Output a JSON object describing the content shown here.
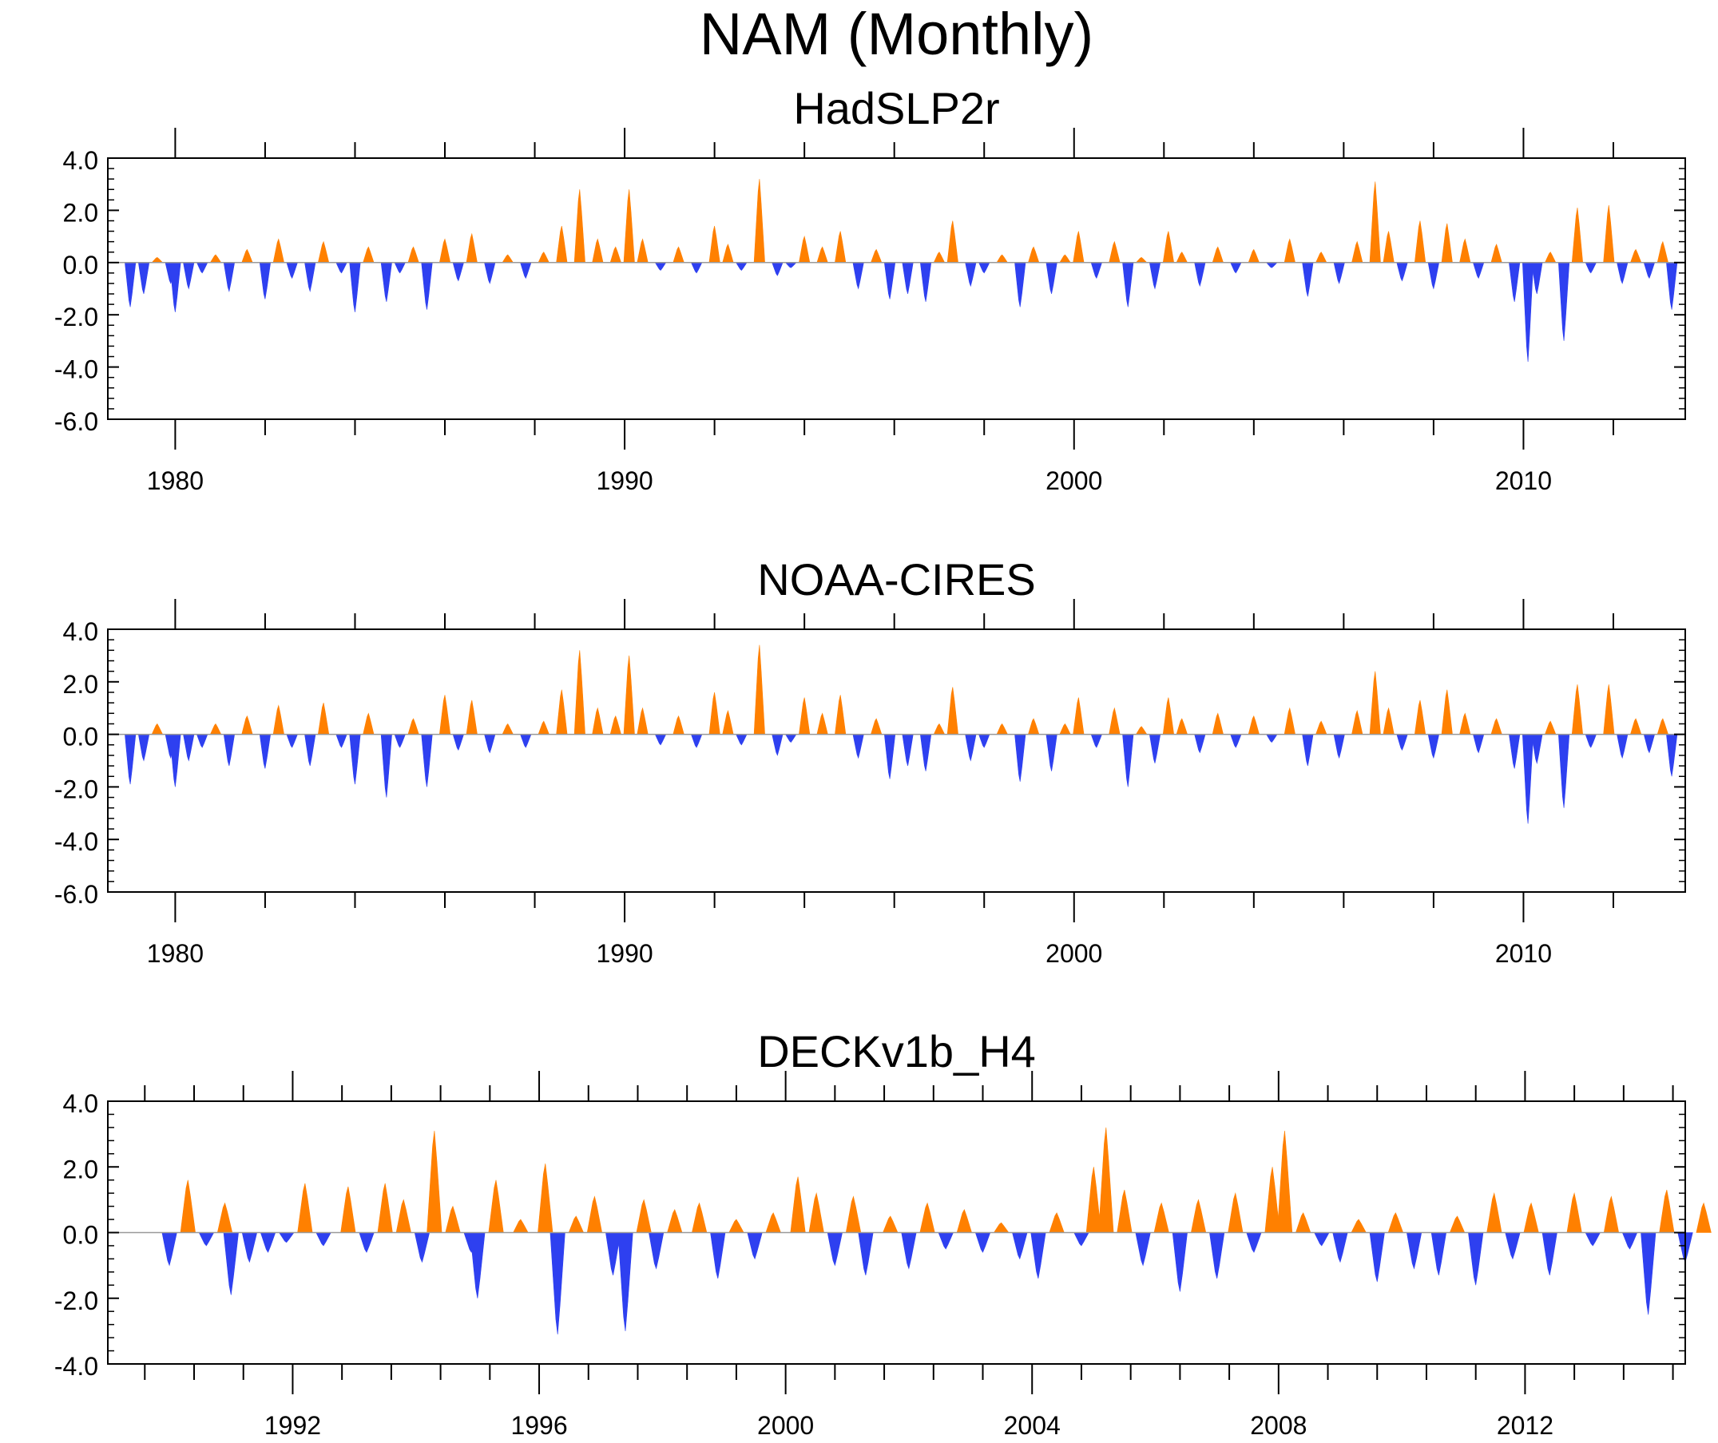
{
  "page_title": "NAM (Monthly)",
  "colors": {
    "positive": "#FF8000",
    "negative": "#2E40F0",
    "axis": "#000000",
    "zero_line": "#999999"
  },
  "chart_data": [
    {
      "type": "area",
      "title": "HadSLP2r",
      "x_unit": "year",
      "xlim": [
        1978.5,
        2013.6
      ],
      "ylim": [
        -6,
        4
      ],
      "yticks": [
        -6,
        -4,
        -2,
        0,
        2,
        4
      ],
      "ytick_labels": [
        "-6.0",
        "-4.0",
        "-2.0",
        "0.0",
        "2.0",
        "4.0"
      ],
      "xticks": [
        1980,
        1990,
        2000,
        2010
      ],
      "xtick_labels": [
        "1980",
        "1990",
        "2000",
        "2010"
      ],
      "grid": false,
      "baseline": 0,
      "values": [
        [
          1979.0,
          -1.7
        ],
        [
          1979.3,
          -1.2
        ],
        [
          1979.6,
          0.2
        ],
        [
          1979.9,
          -0.8
        ],
        [
          1980.0,
          -1.9
        ],
        [
          1980.3,
          -1.0
        ],
        [
          1980.6,
          -0.4
        ],
        [
          1980.9,
          0.3
        ],
        [
          1981.2,
          -1.1
        ],
        [
          1981.6,
          0.5
        ],
        [
          1982.0,
          -1.4
        ],
        [
          1982.3,
          0.9
        ],
        [
          1982.6,
          -0.6
        ],
        [
          1983.0,
          -1.1
        ],
        [
          1983.3,
          0.8
        ],
        [
          1983.7,
          -0.4
        ],
        [
          1984.0,
          -1.9
        ],
        [
          1984.3,
          0.6
        ],
        [
          1984.7,
          -1.5
        ],
        [
          1985.0,
          -0.4
        ],
        [
          1985.3,
          0.6
        ],
        [
          1985.6,
          -1.8
        ],
        [
          1986.0,
          0.9
        ],
        [
          1986.3,
          -0.7
        ],
        [
          1986.6,
          1.1
        ],
        [
          1987.0,
          -0.8
        ],
        [
          1987.4,
          0.3
        ],
        [
          1987.8,
          -0.6
        ],
        [
          1988.2,
          0.4
        ],
        [
          1988.6,
          1.4
        ],
        [
          1989.0,
          2.8
        ],
        [
          1989.4,
          0.9
        ],
        [
          1989.8,
          0.6
        ],
        [
          1990.1,
          2.8
        ],
        [
          1990.4,
          0.9
        ],
        [
          1990.8,
          -0.3
        ],
        [
          1991.2,
          0.6
        ],
        [
          1991.6,
          -0.4
        ],
        [
          1992.0,
          1.4
        ],
        [
          1992.3,
          0.7
        ],
        [
          1992.6,
          -0.3
        ],
        [
          1993.0,
          3.2
        ],
        [
          1993.4,
          -0.5
        ],
        [
          1993.7,
          -0.2
        ],
        [
          1994.0,
          1.0
        ],
        [
          1994.4,
          0.6
        ],
        [
          1994.8,
          1.2
        ],
        [
          1995.2,
          -1.0
        ],
        [
          1995.6,
          0.5
        ],
        [
          1995.9,
          -1.4
        ],
        [
          1996.3,
          -1.2
        ],
        [
          1996.7,
          -1.5
        ],
        [
          1997.0,
          0.4
        ],
        [
          1997.3,
          1.6
        ],
        [
          1997.7,
          -0.9
        ],
        [
          1998.0,
          -0.4
        ],
        [
          1998.4,
          0.3
        ],
        [
          1998.8,
          -1.7
        ],
        [
          1999.1,
          0.6
        ],
        [
          1999.5,
          -1.2
        ],
        [
          1999.8,
          0.3
        ],
        [
          2000.1,
          1.2
        ],
        [
          2000.5,
          -0.6
        ],
        [
          2000.9,
          0.8
        ],
        [
          2001.2,
          -1.7
        ],
        [
          2001.5,
          0.2
        ],
        [
          2001.8,
          -1.0
        ],
        [
          2002.1,
          1.2
        ],
        [
          2002.4,
          0.4
        ],
        [
          2002.8,
          -0.9
        ],
        [
          2003.2,
          0.6
        ],
        [
          2003.6,
          -0.4
        ],
        [
          2004.0,
          0.5
        ],
        [
          2004.4,
          -0.2
        ],
        [
          2004.8,
          0.9
        ],
        [
          2005.2,
          -1.3
        ],
        [
          2005.5,
          0.4
        ],
        [
          2005.9,
          -0.8
        ],
        [
          2006.3,
          0.8
        ],
        [
          2006.7,
          3.1
        ],
        [
          2007.0,
          1.2
        ],
        [
          2007.3,
          -0.7
        ],
        [
          2007.7,
          1.6
        ],
        [
          2008.0,
          -1.0
        ],
        [
          2008.3,
          1.5
        ],
        [
          2008.7,
          0.9
        ],
        [
          2009.0,
          -0.6
        ],
        [
          2009.4,
          0.7
        ],
        [
          2009.8,
          -1.5
        ],
        [
          2010.1,
          -3.8
        ],
        [
          2010.3,
          -1.2
        ],
        [
          2010.6,
          0.4
        ],
        [
          2010.9,
          -3.0
        ],
        [
          2011.2,
          2.1
        ],
        [
          2011.5,
          -0.4
        ],
        [
          2011.9,
          2.2
        ],
        [
          2012.2,
          -0.8
        ],
        [
          2012.5,
          0.5
        ],
        [
          2012.8,
          -0.6
        ],
        [
          2013.1,
          0.8
        ],
        [
          2013.3,
          -1.8
        ]
      ]
    },
    {
      "type": "area",
      "title": "NOAA-CIRES",
      "x_unit": "year",
      "xlim": [
        1978.5,
        2013.6
      ],
      "ylim": [
        -6,
        4
      ],
      "yticks": [
        -6,
        -4,
        -2,
        0,
        2,
        4
      ],
      "ytick_labels": [
        "-6.0",
        "-4.0",
        "-2.0",
        "0.0",
        "2.0",
        "4.0"
      ],
      "xticks": [
        1980,
        1990,
        2000,
        2010
      ],
      "xtick_labels": [
        "1980",
        "1990",
        "2000",
        "2010"
      ],
      "grid": false,
      "baseline": 0,
      "values": [
        [
          1979.0,
          -1.9
        ],
        [
          1979.3,
          -1.0
        ],
        [
          1979.6,
          0.4
        ],
        [
          1979.9,
          -0.9
        ],
        [
          1980.0,
          -2.0
        ],
        [
          1980.3,
          -1.0
        ],
        [
          1980.6,
          -0.5
        ],
        [
          1980.9,
          0.4
        ],
        [
          1981.2,
          -1.2
        ],
        [
          1981.6,
          0.7
        ],
        [
          1982.0,
          -1.3
        ],
        [
          1982.3,
          1.1
        ],
        [
          1982.6,
          -0.5
        ],
        [
          1983.0,
          -1.2
        ],
        [
          1983.3,
          1.2
        ],
        [
          1983.7,
          -0.5
        ],
        [
          1984.0,
          -1.9
        ],
        [
          1984.3,
          0.8
        ],
        [
          1984.7,
          -2.4
        ],
        [
          1985.0,
          -0.5
        ],
        [
          1985.3,
          0.6
        ],
        [
          1985.6,
          -2.0
        ],
        [
          1986.0,
          1.5
        ],
        [
          1986.3,
          -0.6
        ],
        [
          1986.6,
          1.3
        ],
        [
          1987.0,
          -0.7
        ],
        [
          1987.4,
          0.4
        ],
        [
          1987.8,
          -0.5
        ],
        [
          1988.2,
          0.5
        ],
        [
          1988.6,
          1.7
        ],
        [
          1989.0,
          3.2
        ],
        [
          1989.4,
          1.0
        ],
        [
          1989.8,
          0.7
        ],
        [
          1990.1,
          3.0
        ],
        [
          1990.4,
          1.0
        ],
        [
          1990.8,
          -0.4
        ],
        [
          1991.2,
          0.7
        ],
        [
          1991.6,
          -0.5
        ],
        [
          1992.0,
          1.6
        ],
        [
          1992.3,
          0.9
        ],
        [
          1992.6,
          -0.4
        ],
        [
          1993.0,
          3.4
        ],
        [
          1993.4,
          -0.8
        ],
        [
          1993.7,
          -0.3
        ],
        [
          1994.0,
          1.4
        ],
        [
          1994.4,
          0.8
        ],
        [
          1994.8,
          1.5
        ],
        [
          1995.2,
          -0.9
        ],
        [
          1995.6,
          0.6
        ],
        [
          1995.9,
          -1.7
        ],
        [
          1996.3,
          -1.2
        ],
        [
          1996.7,
          -1.4
        ],
        [
          1997.0,
          0.4
        ],
        [
          1997.3,
          1.8
        ],
        [
          1997.7,
          -1.0
        ],
        [
          1998.0,
          -0.5
        ],
        [
          1998.4,
          0.4
        ],
        [
          1998.8,
          -1.8
        ],
        [
          1999.1,
          0.6
        ],
        [
          1999.5,
          -1.4
        ],
        [
          1999.8,
          0.4
        ],
        [
          2000.1,
          1.4
        ],
        [
          2000.5,
          -0.5
        ],
        [
          2000.9,
          1.0
        ],
        [
          2001.2,
          -2.0
        ],
        [
          2001.5,
          0.3
        ],
        [
          2001.8,
          -1.1
        ],
        [
          2002.1,
          1.4
        ],
        [
          2002.4,
          0.6
        ],
        [
          2002.8,
          -0.7
        ],
        [
          2003.2,
          0.8
        ],
        [
          2003.6,
          -0.5
        ],
        [
          2004.0,
          0.7
        ],
        [
          2004.4,
          -0.3
        ],
        [
          2004.8,
          1.0
        ],
        [
          2005.2,
          -1.2
        ],
        [
          2005.5,
          0.5
        ],
        [
          2005.9,
          -0.9
        ],
        [
          2006.3,
          0.9
        ],
        [
          2006.7,
          2.4
        ],
        [
          2007.0,
          1.0
        ],
        [
          2007.3,
          -0.6
        ],
        [
          2007.7,
          1.3
        ],
        [
          2008.0,
          -0.9
        ],
        [
          2008.3,
          1.7
        ],
        [
          2008.7,
          0.8
        ],
        [
          2009.0,
          -0.7
        ],
        [
          2009.4,
          0.6
        ],
        [
          2009.8,
          -1.3
        ],
        [
          2010.1,
          -3.4
        ],
        [
          2010.3,
          -1.1
        ],
        [
          2010.6,
          0.5
        ],
        [
          2010.9,
          -2.8
        ],
        [
          2011.2,
          1.9
        ],
        [
          2011.5,
          -0.5
        ],
        [
          2011.9,
          1.9
        ],
        [
          2012.2,
          -0.9
        ],
        [
          2012.5,
          0.6
        ],
        [
          2012.8,
          -0.7
        ],
        [
          2013.1,
          0.6
        ],
        [
          2013.3,
          -1.6
        ]
      ]
    },
    {
      "type": "area",
      "title": "DECKv1b_H4",
      "x_unit": "year",
      "xlim": [
        1989.0,
        2014.6
      ],
      "ylim": [
        -4,
        4
      ],
      "yticks": [
        -4,
        -2,
        0,
        2,
        4
      ],
      "ytick_labels": [
        "-4.0",
        "-2.0",
        "0.0",
        "2.0",
        "4.0"
      ],
      "xticks": [
        1992,
        1996,
        2000,
        2004,
        2008,
        2012
      ],
      "xtick_labels": [
        "1992",
        "1996",
        "2000",
        "2004",
        "2008",
        "2012"
      ],
      "grid": false,
      "baseline": 0,
      "values": [
        [
          1990.0,
          -1.0
        ],
        [
          1990.3,
          1.6
        ],
        [
          1990.6,
          -0.4
        ],
        [
          1990.9,
          0.9
        ],
        [
          1991.0,
          -1.9
        ],
        [
          1991.3,
          -0.9
        ],
        [
          1991.6,
          -0.6
        ],
        [
          1991.9,
          -0.3
        ],
        [
          1992.2,
          1.5
        ],
        [
          1992.5,
          -0.4
        ],
        [
          1992.9,
          1.4
        ],
        [
          1993.2,
          -0.6
        ],
        [
          1993.5,
          1.5
        ],
        [
          1993.8,
          1.0
        ],
        [
          1994.1,
          -0.9
        ],
        [
          1994.3,
          3.1
        ],
        [
          1994.6,
          0.8
        ],
        [
          1994.9,
          -0.6
        ],
        [
          1995.0,
          -2.0
        ],
        [
          1995.3,
          1.6
        ],
        [
          1995.7,
          0.4
        ],
        [
          1996.1,
          2.1
        ],
        [
          1996.3,
          -3.1
        ],
        [
          1996.6,
          0.5
        ],
        [
          1996.9,
          1.1
        ],
        [
          1997.2,
          -1.3
        ],
        [
          1997.4,
          -3.0
        ],
        [
          1997.7,
          1.0
        ],
        [
          1997.9,
          -1.1
        ],
        [
          1998.2,
          0.7
        ],
        [
          1998.6,
          0.9
        ],
        [
          1998.9,
          -1.4
        ],
        [
          1999.2,
          0.4
        ],
        [
          1999.5,
          -0.8
        ],
        [
          1999.8,
          0.6
        ],
        [
          2000.2,
          1.7
        ],
        [
          2000.5,
          1.2
        ],
        [
          2000.8,
          -1.0
        ],
        [
          2001.1,
          1.1
        ],
        [
          2001.3,
          -1.3
        ],
        [
          2001.7,
          0.5
        ],
        [
          2002.0,
          -1.1
        ],
        [
          2002.3,
          0.9
        ],
        [
          2002.6,
          -0.5
        ],
        [
          2002.9,
          0.7
        ],
        [
          2003.2,
          -0.6
        ],
        [
          2003.5,
          0.3
        ],
        [
          2003.8,
          -0.8
        ],
        [
          2004.1,
          -1.4
        ],
        [
          2004.4,
          0.6
        ],
        [
          2004.8,
          -0.4
        ],
        [
          2005.0,
          2.0
        ],
        [
          2005.2,
          3.2
        ],
        [
          2005.5,
          1.3
        ],
        [
          2005.8,
          -1.0
        ],
        [
          2006.1,
          0.9
        ],
        [
          2006.4,
          -1.8
        ],
        [
          2006.7,
          1.0
        ],
        [
          2007.0,
          -1.4
        ],
        [
          2007.3,
          1.2
        ],
        [
          2007.6,
          -0.6
        ],
        [
          2007.9,
          2.0
        ],
        [
          2008.1,
          3.1
        ],
        [
          2008.4,
          0.6
        ],
        [
          2008.7,
          -0.4
        ],
        [
          2009.0,
          -0.9
        ],
        [
          2009.3,
          0.4
        ],
        [
          2009.6,
          -1.5
        ],
        [
          2009.9,
          0.6
        ],
        [
          2010.2,
          -1.1
        ],
        [
          2010.6,
          -1.3
        ],
        [
          2010.9,
          0.5
        ],
        [
          2011.2,
          -1.6
        ],
        [
          2011.5,
          1.2
        ],
        [
          2011.8,
          -0.8
        ],
        [
          2012.1,
          0.9
        ],
        [
          2012.4,
          -1.3
        ],
        [
          2012.8,
          1.2
        ],
        [
          2013.1,
          -0.4
        ],
        [
          2013.4,
          1.1
        ],
        [
          2013.7,
          -0.5
        ],
        [
          2014.0,
          -2.5
        ],
        [
          2014.3,
          1.3
        ],
        [
          2014.6,
          -0.9
        ],
        [
          2014.9,
          0.9
        ]
      ]
    }
  ]
}
